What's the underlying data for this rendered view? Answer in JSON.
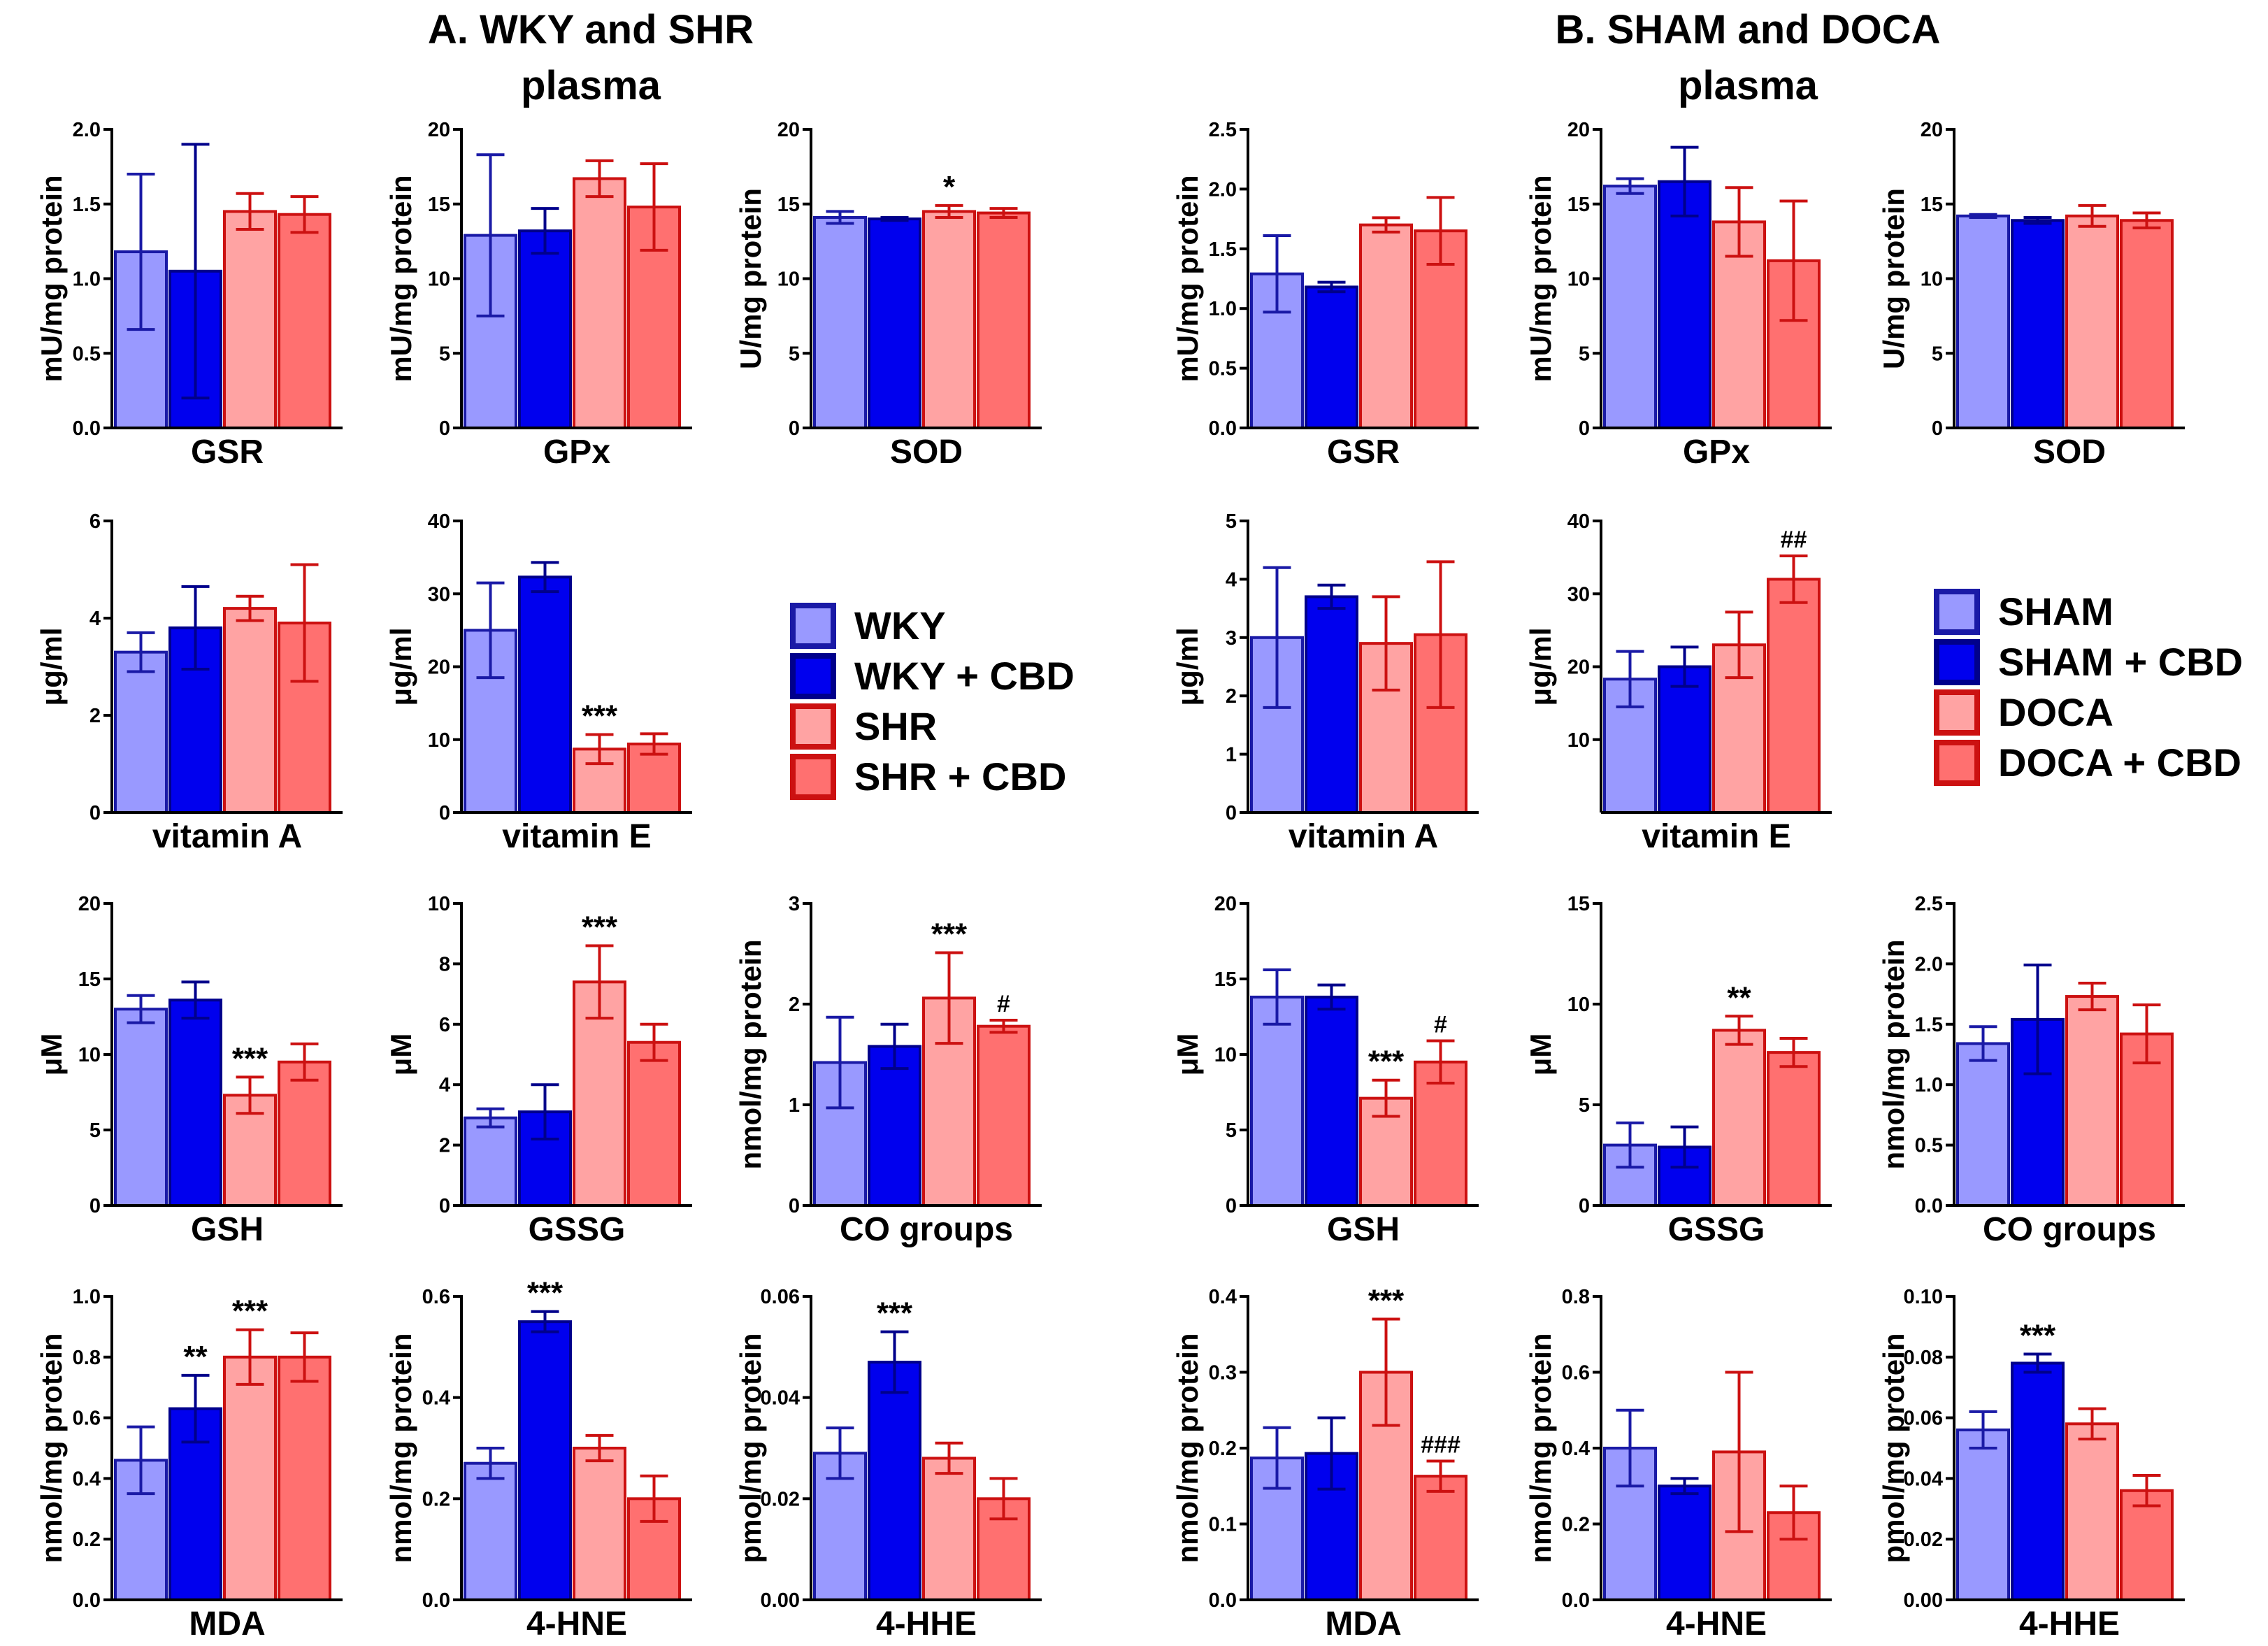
{
  "titles": {
    "A_line1": "A. WKY and SHR",
    "A_line2": "plasma",
    "B_line1": "B. SHAM and DOCA",
    "B_line2": "plasma"
  },
  "colors": {
    "group1": "#9999ff",
    "group1_edge": "#1a1aa6",
    "group2": "#0000ee",
    "group2_edge": "#00008b",
    "group3": "#ffa3a3",
    "group3_edge": "#cc1111",
    "group4": "#ff7070",
    "group4_edge": "#cc1111"
  },
  "legends": {
    "A": [
      "WKY",
      "WKY + CBD",
      "SHR",
      "SHR + CBD"
    ],
    "B": [
      "SHAM",
      "SHAM + CBD",
      "DOCA",
      "DOCA + CBD"
    ]
  },
  "chart_data": [
    {
      "panel": "A",
      "type": "bar",
      "title": "",
      "xlabel": "GSR",
      "ylabel": "mU/mg protein",
      "ylim": [
        0,
        2.0
      ],
      "yticks": [
        "0.0",
        "0.5",
        "1.0",
        "1.5",
        "2.0"
      ],
      "values": [
        1.18,
        1.05,
        1.45,
        1.43
      ],
      "errors": [
        0.52,
        0.85,
        0.12,
        0.12
      ],
      "annotations": [
        "",
        "",
        "",
        ""
      ]
    },
    {
      "panel": "A",
      "type": "bar",
      "title": "",
      "xlabel": "GPx",
      "ylabel": "mU/mg protein",
      "ylim": [
        0,
        20
      ],
      "yticks": [
        "0",
        "5",
        "10",
        "15",
        "20"
      ],
      "values": [
        12.9,
        13.2,
        16.7,
        14.8
      ],
      "errors": [
        5.4,
        1.5,
        1.2,
        2.9
      ],
      "annotations": [
        "",
        "",
        "",
        ""
      ]
    },
    {
      "panel": "A",
      "type": "bar",
      "title": "",
      "xlabel": "SOD",
      "ylabel": "U/mg protein",
      "ylim": [
        0,
        20
      ],
      "yticks": [
        "0",
        "5",
        "10",
        "15",
        "20"
      ],
      "values": [
        14.1,
        14.0,
        14.5,
        14.4
      ],
      "errors": [
        0.4,
        0.1,
        0.4,
        0.3
      ],
      "annotations": [
        "",
        "",
        "*",
        ""
      ]
    },
    {
      "panel": "A",
      "type": "bar",
      "title": "",
      "xlabel": "vitamin A",
      "ylabel": "μg/ml",
      "ylim": [
        0,
        6
      ],
      "yticks": [
        "0",
        "2",
        "4",
        "6"
      ],
      "values": [
        3.3,
        3.8,
        4.2,
        3.9
      ],
      "errors": [
        0.4,
        0.85,
        0.25,
        1.2
      ],
      "annotations": [
        "",
        "",
        "",
        ""
      ]
    },
    {
      "panel": "A",
      "type": "bar",
      "title": "",
      "xlabel": "vitamin E",
      "ylabel": "μg/ml",
      "ylim": [
        0,
        40
      ],
      "yticks": [
        "0",
        "10",
        "20",
        "30",
        "40"
      ],
      "values": [
        25.0,
        32.3,
        8.7,
        9.4
      ],
      "errors": [
        6.5,
        2.0,
        2.0,
        1.4
      ],
      "annotations": [
        "",
        "",
        "***",
        ""
      ]
    },
    {
      "panel": "A",
      "type": "bar",
      "title": "",
      "xlabel": "GSH",
      "ylabel": "μM",
      "ylim": [
        0,
        20
      ],
      "yticks": [
        "0",
        "5",
        "10",
        "15",
        "20"
      ],
      "values": [
        13.0,
        13.6,
        7.3,
        9.5
      ],
      "errors": [
        0.9,
        1.2,
        1.2,
        1.2
      ],
      "annotations": [
        "",
        "",
        "***",
        ""
      ]
    },
    {
      "panel": "A",
      "type": "bar",
      "title": "",
      "xlabel": "GSSG",
      "ylabel": "μM",
      "ylim": [
        0,
        10
      ],
      "yticks": [
        "0",
        "2",
        "4",
        "6",
        "8",
        "10"
      ],
      "values": [
        2.9,
        3.1,
        7.4,
        5.4
      ],
      "errors": [
        0.3,
        0.9,
        1.2,
        0.6
      ],
      "annotations": [
        "",
        "",
        "***",
        ""
      ]
    },
    {
      "panel": "A",
      "type": "bar",
      "title": "",
      "xlabel": "CO groups",
      "ylabel": "nmol/mg protein",
      "ylim": [
        0,
        3
      ],
      "yticks": [
        "0",
        "1",
        "2",
        "3"
      ],
      "values": [
        1.42,
        1.58,
        2.06,
        1.78
      ],
      "errors": [
        0.45,
        0.22,
        0.45,
        0.06
      ],
      "annotations": [
        "",
        "",
        "***",
        "#"
      ]
    },
    {
      "panel": "A",
      "type": "bar",
      "title": "",
      "xlabel": "MDA",
      "ylabel": "nmol/mg protein",
      "ylim": [
        0,
        1.0
      ],
      "yticks": [
        "0.0",
        "0.2",
        "0.4",
        "0.6",
        "0.8",
        "1.0"
      ],
      "values": [
        0.46,
        0.63,
        0.8,
        0.8
      ],
      "errors": [
        0.11,
        0.11,
        0.09,
        0.08
      ],
      "annotations": [
        "",
        "**",
        "***",
        ""
      ]
    },
    {
      "panel": "A",
      "type": "bar",
      "title": "",
      "xlabel": "4-HNE",
      "ylabel": "nmol/mg protein",
      "ylim": [
        0,
        0.6
      ],
      "yticks": [
        "0.0",
        "0.2",
        "0.4",
        "0.6"
      ],
      "values": [
        0.27,
        0.55,
        0.3,
        0.2
      ],
      "errors": [
        0.03,
        0.02,
        0.025,
        0.045
      ],
      "annotations": [
        "",
        "***",
        "",
        ""
      ]
    },
    {
      "panel": "A",
      "type": "bar",
      "title": "",
      "xlabel": "4-HHE",
      "ylabel": "pmol/mg protein",
      "ylim": [
        0,
        0.06
      ],
      "yticks": [
        "0.00",
        "0.02",
        "0.04",
        "0.06"
      ],
      "values": [
        0.029,
        0.047,
        0.028,
        0.02
      ],
      "errors": [
        0.005,
        0.006,
        0.003,
        0.004
      ],
      "annotations": [
        "",
        "***",
        "",
        ""
      ]
    },
    {
      "panel": "B",
      "type": "bar",
      "title": "",
      "xlabel": "GSR",
      "ylabel": "mU/mg protein",
      "ylim": [
        0,
        2.5
      ],
      "yticks": [
        "0.0",
        "0.5",
        "1.0",
        "1.5",
        "2.0",
        "2.5"
      ],
      "values": [
        1.29,
        1.18,
        1.7,
        1.65
      ],
      "errors": [
        0.32,
        0.04,
        0.06,
        0.28
      ],
      "annotations": [
        "",
        "",
        "",
        ""
      ]
    },
    {
      "panel": "B",
      "type": "bar",
      "title": "",
      "xlabel": "GPx",
      "ylabel": "mU/mg protein",
      "ylim": [
        0,
        20
      ],
      "yticks": [
        "0",
        "5",
        "10",
        "15",
        "20"
      ],
      "values": [
        16.2,
        16.5,
        13.8,
        11.2
      ],
      "errors": [
        0.5,
        2.3,
        2.3,
        4.0
      ],
      "annotations": [
        "",
        "",
        "",
        ""
      ]
    },
    {
      "panel": "B",
      "type": "bar",
      "title": "",
      "xlabel": "SOD",
      "ylabel": "U/mg protein",
      "ylim": [
        0,
        20
      ],
      "yticks": [
        "0",
        "5",
        "10",
        "15",
        "20"
      ],
      "values": [
        14.2,
        13.9,
        14.2,
        13.9
      ],
      "errors": [
        0.1,
        0.2,
        0.7,
        0.5
      ],
      "annotations": [
        "",
        "",
        "",
        ""
      ]
    },
    {
      "panel": "B",
      "type": "bar",
      "title": "",
      "xlabel": "vitamin A",
      "ylabel": "μg/ml",
      "ylim": [
        0,
        5
      ],
      "yticks": [
        "0",
        "1",
        "2",
        "3",
        "4",
        "5"
      ],
      "values": [
        3.0,
        3.7,
        2.9,
        3.05
      ],
      "errors": [
        1.2,
        0.2,
        0.8,
        1.25
      ],
      "annotations": [
        "",
        "",
        "",
        ""
      ]
    },
    {
      "panel": "B",
      "type": "bar",
      "title": "",
      "xlabel": "vitamin E",
      "ylabel": "μg/ml",
      "ylim": [
        0,
        40
      ],
      "yticks": [
        "10",
        "20",
        "30",
        "40"
      ],
      "values": [
        18.3,
        20.0,
        23.0,
        32.0
      ],
      "errors": [
        3.8,
        2.7,
        4.5,
        3.2
      ],
      "annotations": [
        "",
        "",
        "",
        "##"
      ]
    },
    {
      "panel": "B",
      "type": "bar",
      "title": "",
      "xlabel": "GSH",
      "ylabel": "μM",
      "ylim": [
        0,
        20
      ],
      "yticks": [
        "0",
        "5",
        "10",
        "15",
        "20"
      ],
      "values": [
        13.8,
        13.8,
        7.1,
        9.5
      ],
      "errors": [
        1.8,
        0.8,
        1.2,
        1.4
      ],
      "annotations": [
        "",
        "",
        "***",
        "#"
      ]
    },
    {
      "panel": "B",
      "type": "bar",
      "title": "",
      "xlabel": "GSSG",
      "ylabel": "μM",
      "ylim": [
        0,
        15
      ],
      "yticks": [
        "0",
        "5",
        "10",
        "15"
      ],
      "values": [
        3.0,
        2.9,
        8.7,
        7.6
      ],
      "errors": [
        1.1,
        1.0,
        0.7,
        0.7
      ],
      "annotations": [
        "",
        "",
        "**",
        ""
      ]
    },
    {
      "panel": "B",
      "type": "bar",
      "title": "",
      "xlabel": "CO groups",
      "ylabel": "nmol/mg protein",
      "ylim": [
        0,
        2.5
      ],
      "yticks": [
        "0.0",
        "0.5",
        "1.0",
        "1.5",
        "2.0",
        "2.5"
      ],
      "values": [
        1.34,
        1.54,
        1.73,
        1.42
      ],
      "errors": [
        0.14,
        0.45,
        0.11,
        0.24
      ],
      "annotations": [
        "",
        "",
        "",
        ""
      ]
    },
    {
      "panel": "B",
      "type": "bar",
      "title": "",
      "xlabel": "MDA",
      "ylabel": "nmol/mg protein",
      "ylim": [
        0,
        0.4
      ],
      "yticks": [
        "0.0",
        "0.1",
        "0.2",
        "0.3",
        "0.4"
      ],
      "values": [
        0.187,
        0.193,
        0.3,
        0.163
      ],
      "errors": [
        0.04,
        0.047,
        0.07,
        0.02
      ],
      "annotations": [
        "",
        "",
        "***",
        "###"
      ]
    },
    {
      "panel": "B",
      "type": "bar",
      "title": "",
      "xlabel": "4-HNE",
      "ylabel": "nmol/mg protein",
      "ylim": [
        0,
        0.8
      ],
      "yticks": [
        "0.0",
        "0.2",
        "0.4",
        "0.6",
        "0.8"
      ],
      "values": [
        0.4,
        0.3,
        0.39,
        0.23
      ],
      "errors": [
        0.1,
        0.02,
        0.21,
        0.07
      ],
      "annotations": [
        "",
        "",
        "",
        ""
      ]
    },
    {
      "panel": "B",
      "type": "bar",
      "title": "",
      "xlabel": "4-HHE",
      "ylabel": "pmol/mg protein",
      "ylim": [
        0,
        0.1
      ],
      "yticks": [
        "0.00",
        "0.02",
        "0.04",
        "0.06",
        "0.08",
        "0.10"
      ],
      "values": [
        0.056,
        0.078,
        0.058,
        0.036
      ],
      "errors": [
        0.006,
        0.003,
        0.005,
        0.005
      ],
      "annotations": [
        "",
        "***",
        "",
        ""
      ]
    }
  ]
}
